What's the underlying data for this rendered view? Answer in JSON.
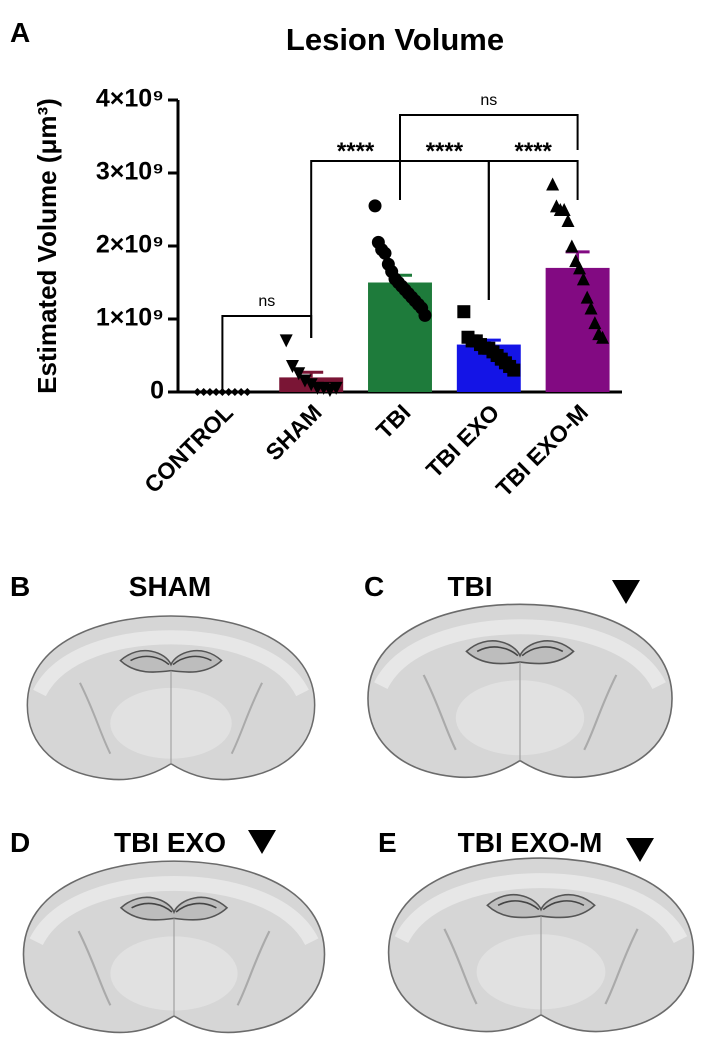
{
  "chart_label": "A",
  "chart_data": {
    "type": "bar",
    "title": "Lesion Volume",
    "y_label": "Estimated Volume (μm³)",
    "categories": [
      "CONTROL",
      "SHAM",
      "TBI",
      "TBI EXO",
      "TBI EXO-M"
    ],
    "values": [
      0,
      200000000,
      1500000000,
      650000000,
      1700000000
    ],
    "errors": [
      0,
      70000000,
      100000000,
      60000000,
      220000000
    ],
    "colors": [
      "#000000",
      "#7a1535",
      "#1e7b3b",
      "#1414e6",
      "#820a82"
    ],
    "markers": [
      "diamond",
      "triangle-down",
      "circle",
      "square",
      "triangle"
    ],
    "points": [
      [
        0,
        0,
        0,
        0,
        0,
        0,
        0,
        0,
        0
      ],
      [
        700000000,
        350000000,
        250000000,
        150000000,
        100000000,
        50000000,
        50000000,
        20000000,
        50000000
      ],
      [
        2550000000,
        2050000000,
        1950000000,
        1900000000,
        1750000000,
        1650000000,
        1550000000,
        1500000000,
        1450000000,
        1400000000,
        1350000000,
        1300000000,
        1250000000,
        1200000000,
        1150000000,
        1050000000
      ],
      [
        1100000000,
        750000000,
        700000000,
        700000000,
        650000000,
        600000000,
        600000000,
        550000000,
        500000000,
        450000000,
        400000000,
        350000000,
        300000000
      ],
      [
        2850000000,
        2550000000,
        2500000000,
        2500000000,
        2350000000,
        2000000000,
        1800000000,
        1700000000,
        1550000000,
        1300000000,
        1150000000,
        950000000,
        800000000,
        750000000
      ]
    ],
    "ylim": [
      0,
      4000000000
    ],
    "yticks": [
      0,
      {
        "value": 1000000000,
        "label": "1×10⁹"
      },
      {
        "value": 2000000000,
        "label": "2×10⁹"
      },
      {
        "value": 3000000000,
        "label": "3×10⁹"
      },
      {
        "value": 4000000000,
        "label": "4×10⁹"
      }
    ],
    "comparisons": [
      {
        "pair": [
          0,
          1
        ],
        "label": "ns"
      },
      {
        "pair": [
          1,
          2
        ],
        "label": "****"
      },
      {
        "pair": [
          2,
          3
        ],
        "label": "****"
      },
      {
        "pair": [
          3,
          4
        ],
        "label": "****"
      },
      {
        "pair": [
          2,
          4
        ],
        "label": "ns"
      }
    ]
  },
  "panels": [
    {
      "letter": "B",
      "title": "SHAM"
    },
    {
      "letter": "C",
      "title": "TBI"
    },
    {
      "letter": "D",
      "title": "TBI EXO"
    },
    {
      "letter": "E",
      "title": "TBI EXO-M"
    }
  ]
}
